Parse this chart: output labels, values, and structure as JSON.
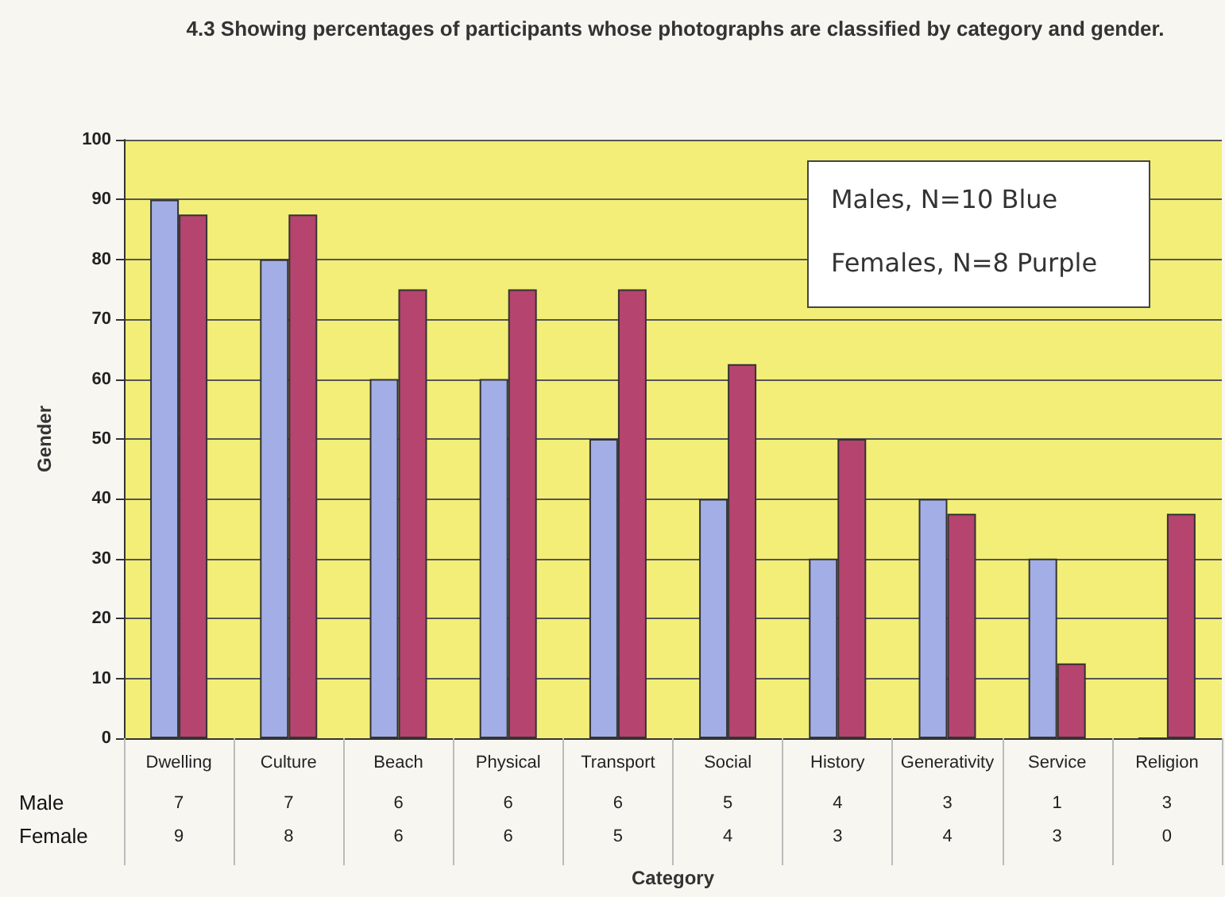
{
  "chart_data": {
    "type": "bar",
    "title": "4.3 Showing percentages of participants whose photographs are classified by category and gender.",
    "xlabel": "Category",
    "ylabel": "Gender",
    "categories": [
      "Dwelling",
      "Culture",
      "Beach",
      "Physical",
      "Transport",
      "Social",
      "History",
      "Generativity",
      "Service",
      "Religion"
    ],
    "series": [
      {
        "color": "#a3aee6",
        "values": [
          90,
          80,
          60,
          60,
          50,
          40,
          30,
          40,
          30,
          0
        ]
      },
      {
        "color": "#b5446e",
        "values": [
          87.5,
          87.5,
          75,
          75,
          75,
          62.5,
          50,
          37.5,
          12.5,
          37.5
        ]
      }
    ],
    "annotations": [
      "Males, N=10 Blue",
      "Females, N=8 Purple",
      "Male",
      "7",
      "7",
      "6",
      "6",
      "6",
      "5",
      "4",
      "3",
      "1",
      "3",
      "Female",
      "9",
      "8",
      "6",
      "6",
      "5",
      "4",
      "3",
      "4",
      "3",
      "0"
    ],
    "ylim": [
      0,
      100
    ],
    "yticks": [
      0,
      10,
      20,
      30,
      40,
      50,
      60,
      70,
      80,
      90,
      100
    ],
    "grid": "y"
  }
}
